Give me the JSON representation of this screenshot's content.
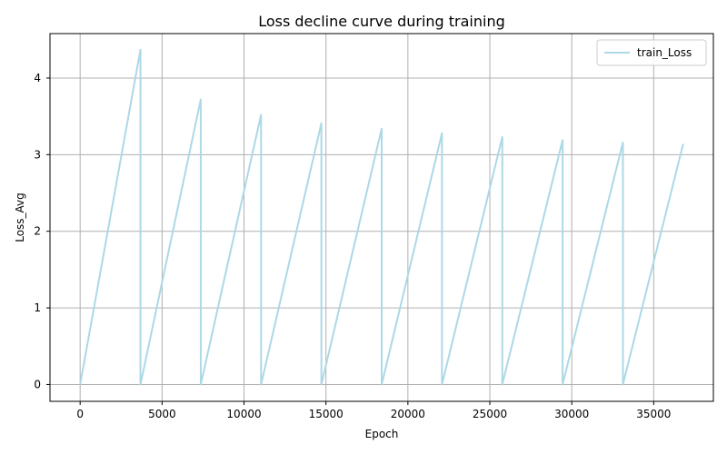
{
  "chart_data": {
    "type": "line",
    "title": "Loss decline curve during training",
    "xlabel": "Epoch",
    "ylabel": "Loss_Avg",
    "xlim": [
      -1840,
      38640
    ],
    "ylim": [
      -0.22,
      4.58
    ],
    "xticks": [
      0,
      5000,
      10000,
      15000,
      20000,
      25000,
      30000,
      35000
    ],
    "yticks": [
      0,
      1,
      2,
      3,
      4
    ],
    "grid": true,
    "legend_position": "top-right",
    "series": [
      {
        "name": "train_Loss",
        "color": "#add8e6",
        "x": [
          0,
          3680,
          3680,
          7360,
          7360,
          11040,
          11040,
          14720,
          14720,
          18400,
          18400,
          22080,
          22080,
          25760,
          25760,
          29440,
          29440,
          33120,
          33120,
          36800
        ],
        "y": [
          0,
          4.37,
          0,
          3.72,
          0,
          3.52,
          0,
          3.41,
          0,
          3.34,
          0,
          3.28,
          0,
          3.23,
          0,
          3.19,
          0,
          3.16,
          0,
          3.14
        ]
      }
    ]
  }
}
